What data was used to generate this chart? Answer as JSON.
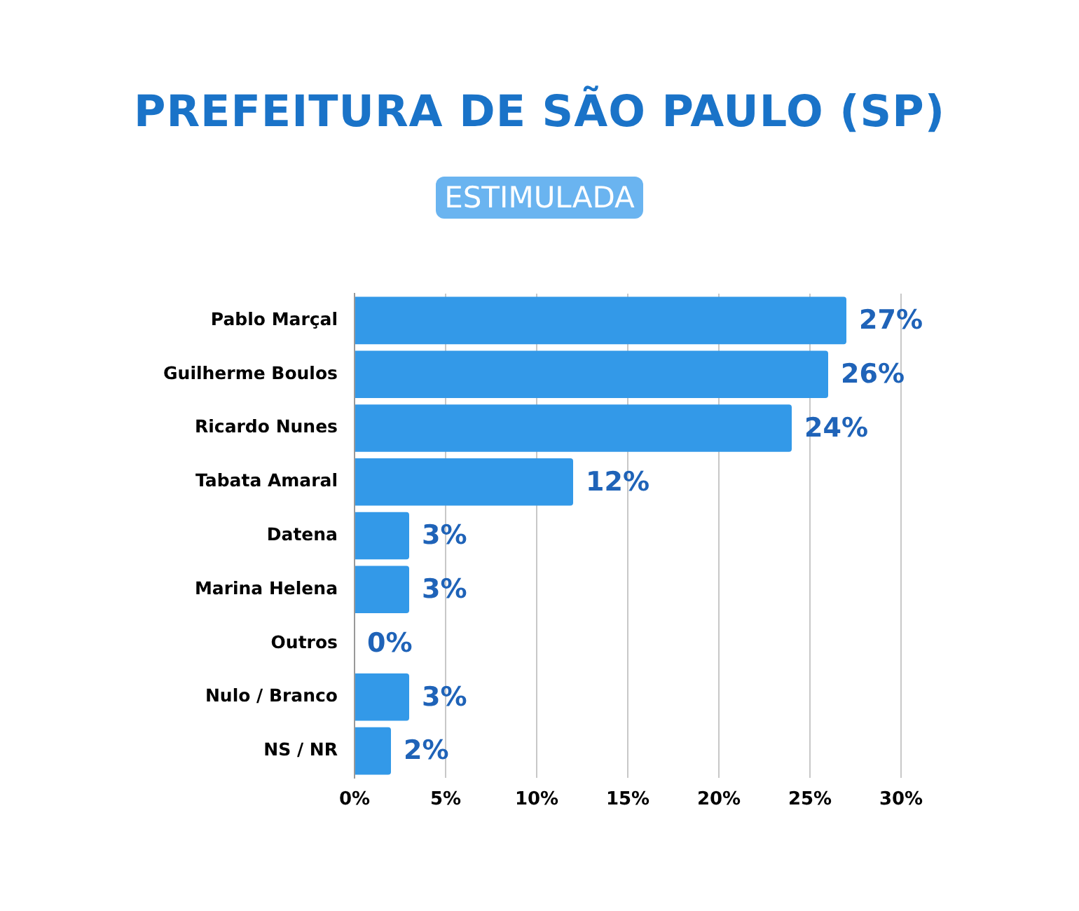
{
  "chart_data": {
    "type": "bar",
    "orientation": "horizontal",
    "title": "PREFEITURA DE SÃO PAULO (SP)",
    "subtitle": "ESTIMULADA",
    "categories": [
      "Pablo Marçal",
      "Guilherme Boulos",
      "Ricardo Nunes",
      "Tabata Amaral",
      "Datena",
      "Marina Helena",
      "Outros",
      "Nulo / Branco",
      "NS / NR"
    ],
    "values": [
      27,
      26,
      24,
      12,
      3,
      3,
      0,
      3,
      2
    ],
    "value_labels": [
      "27%",
      "26%",
      "24%",
      "12%",
      "3%",
      "3%",
      "0%",
      "3%",
      "2%"
    ],
    "color": "#3399e8",
    "xlim": [
      0,
      30
    ],
    "xticks": [
      {
        "value": 0,
        "label": "0%"
      },
      {
        "value": 5,
        "label": "5%"
      },
      {
        "value": 10,
        "label": "10%"
      },
      {
        "value": 15,
        "label": "15%"
      },
      {
        "value": 20,
        "label": "20%"
      },
      {
        "value": 25,
        "label": "25%"
      },
      {
        "value": 30,
        "label": "30%"
      }
    ],
    "grid": "x"
  }
}
